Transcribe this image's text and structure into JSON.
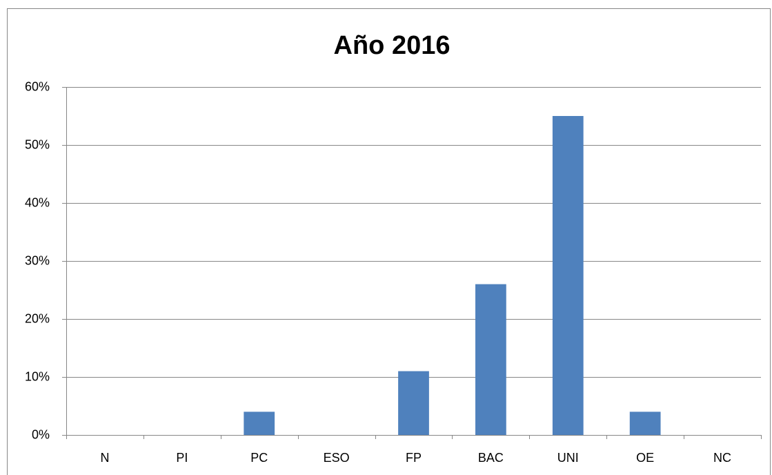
{
  "chart_data": {
    "type": "bar",
    "title": "Año 2016",
    "categories": [
      "N",
      "PI",
      "PC",
      "ESO",
      "FP",
      "BAC",
      "UNI",
      "OE",
      "NC"
    ],
    "values": [
      0,
      0,
      4,
      0,
      11,
      26,
      55,
      4,
      0
    ],
    "color": "#4f81bd",
    "ylim": [
      0,
      60
    ],
    "yticks": [
      {
        "value": 0,
        "label": "0%"
      },
      {
        "value": 10,
        "label": "10%"
      },
      {
        "value": 20,
        "label": "20%"
      },
      {
        "value": 30,
        "label": "30%"
      },
      {
        "value": 40,
        "label": "40%"
      },
      {
        "value": 50,
        "label": "50%"
      },
      {
        "value": 60,
        "label": "60%"
      }
    ],
    "grid": true
  }
}
